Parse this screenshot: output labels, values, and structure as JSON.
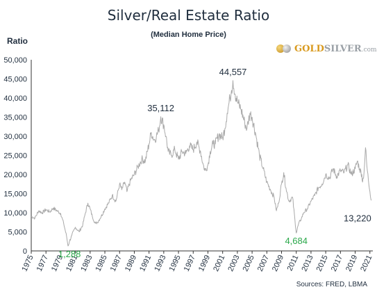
{
  "logo": {
    "brand_gold": "GOLD",
    "brand_silver": "SILVER",
    "brand_suffix": ".com"
  },
  "source": "Sources: FRED, LBMA",
  "colors": {
    "line": "#a9a9a9",
    "axis": "#333333",
    "text": "#1f2d3d",
    "annotation_high": "#1f2d3d",
    "annotation_low": "#2aa84a"
  },
  "chart_data": {
    "type": "line",
    "title": "Silver/Real Estate Ratio",
    "subtitle": "(Median Home Price)",
    "ylabel": "Ratio",
    "xlabel": "",
    "ylim": [
      0,
      50000
    ],
    "xlim": [
      1975,
      2021.4
    ],
    "grid": false,
    "y_ticks": [
      {
        "value": 0,
        "label": "0"
      },
      {
        "value": 5000,
        "label": "5,000"
      },
      {
        "value": 10000,
        "label": "10,000"
      },
      {
        "value": 15000,
        "label": "15,000"
      },
      {
        "value": 20000,
        "label": "20,000"
      },
      {
        "value": 25000,
        "label": "25,000"
      },
      {
        "value": 30000,
        "label": "30,000"
      },
      {
        "value": 35000,
        "label": "35,000"
      },
      {
        "value": 40000,
        "label": "40,000"
      },
      {
        "value": 45000,
        "label": "45,000"
      },
      {
        "value": 50000,
        "label": "50,000"
      }
    ],
    "x_ticks": [
      "1975",
      "1977",
      "1979",
      "1981",
      "1983",
      "1985",
      "1987",
      "1989",
      "1991",
      "1993",
      "1995",
      "1997",
      "1999",
      "2001",
      "2003",
      "2005",
      "2007",
      "2009",
      "2011",
      "2013",
      "2015",
      "2017",
      "2019",
      "2021"
    ],
    "annotations": [
      {
        "label": "1,288",
        "x": 1980.2,
        "y": 1288,
        "kind": "low"
      },
      {
        "label": "35,112",
        "x": 1992.6,
        "y": 35112,
        "kind": "high"
      },
      {
        "label": "44,557",
        "x": 2002.4,
        "y": 44557,
        "kind": "high"
      },
      {
        "label": "4,684",
        "x": 2011.0,
        "y": 4684,
        "kind": "low"
      },
      {
        "label": "13,220",
        "x": 2021.2,
        "y": 13220,
        "kind": "high"
      }
    ],
    "series": [
      {
        "x": [
          1975.0,
          1975.5,
          1976.0,
          1976.5,
          1977.0,
          1977.5,
          1978.0,
          1978.5,
          1979.0,
          1979.4,
          1979.8,
          1980.0,
          1980.2,
          1980.5,
          1981.0,
          1981.5,
          1982.0,
          1982.3,
          1982.7,
          1983.0,
          1983.3,
          1983.7,
          1984.0,
          1984.5,
          1985.0,
          1985.5,
          1986.0,
          1986.5,
          1987.0,
          1987.3,
          1987.7,
          1988.0,
          1988.5,
          1989.0,
          1989.5,
          1990.0,
          1990.5,
          1991.0,
          1991.3,
          1991.7,
          1992.0,
          1992.3,
          1992.6,
          1993.0,
          1993.3,
          1993.6,
          1994.0,
          1994.5,
          1995.0,
          1995.5,
          1996.0,
          1996.5,
          1997.0,
          1997.5,
          1998.0,
          1998.3,
          1998.6,
          1999.0,
          1999.3,
          1999.7,
          2000.0,
          2000.5,
          2001.0,
          2001.3,
          2001.6,
          2002.0,
          2002.2,
          2002.4,
          2002.7,
          2003.0,
          2003.5,
          2004.0,
          2004.3,
          2004.7,
          2005.0,
          2005.5,
          2006.0,
          2006.5,
          2007.0,
          2007.5,
          2008.0,
          2008.3,
          2008.6,
          2009.0,
          2009.3,
          2009.6,
          2010.0,
          2010.5,
          2011.0,
          2011.3,
          2011.7,
          2012.0,
          2012.5,
          2013.0,
          2013.5,
          2014.0,
          2014.5,
          2015.0,
          2015.5,
          2016.0,
          2016.5,
          2017.0,
          2017.5,
          2018.0,
          2018.5,
          2019.0,
          2019.3,
          2019.6,
          2019.9,
          2020.0,
          2020.2,
          2020.4,
          2020.6,
          2020.8,
          2021.0,
          2021.2
        ],
        "y": [
          9000,
          8600,
          10500,
          10000,
          10800,
          10200,
          11200,
          10500,
          9800,
          7200,
          3800,
          1288,
          2500,
          4000,
          6200,
          5000,
          6800,
          9500,
          12500,
          11000,
          9000,
          7200,
          7500,
          9000,
          11000,
          12500,
          14500,
          13000,
          17500,
          16000,
          18000,
          15500,
          18500,
          20000,
          22000,
          24000,
          23500,
          28000,
          31000,
          29000,
          30000,
          31500,
          35112,
          33000,
          30000,
          26000,
          25000,
          26500,
          24000,
          26000,
          25500,
          27500,
          26500,
          28500,
          26000,
          23000,
          21000,
          22500,
          26000,
          28000,
          28000,
          30500,
          29500,
          32000,
          36000,
          40000,
          42000,
          44557,
          41000,
          39000,
          37000,
          33500,
          32000,
          36000,
          35000,
          30500,
          25000,
          21500,
          18000,
          16000,
          14000,
          10500,
          12500,
          17500,
          20500,
          16500,
          13000,
          14000,
          4684,
          7000,
          8500,
          10000,
          11000,
          13000,
          14500,
          16500,
          17500,
          20000,
          19000,
          21500,
          19500,
          21000,
          20500,
          22500,
          20000,
          21500,
          23500,
          21500,
          20000,
          18000,
          20500,
          27000,
          22000,
          18500,
          15500,
          13220
        ]
      }
    ]
  }
}
